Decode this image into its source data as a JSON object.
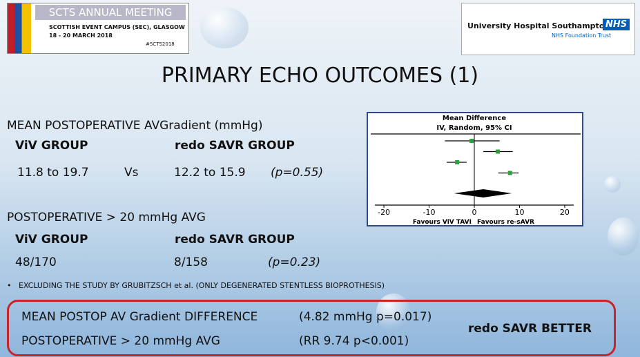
{
  "header": {
    "event_logo": {
      "title": "SCTS ANNUAL MEETING",
      "line1": "SCOTTISH EVENT CAMPUS (SEC), GLASGOW",
      "line2": "18 - 20 MARCH 2018",
      "tag": "#SCTS2018"
    },
    "hospital_logo": {
      "name": "University Hospital Southampton",
      "badge": "NHS",
      "trust": "NHS Foundation Trust"
    }
  },
  "title": "PRIMARY ECHO OUTCOMES (1)",
  "gradient": {
    "heading": "MEAN POSTOPERATIVE AVGradient (mmHg)",
    "group_a": "ViV GROUP",
    "group_b": "redo SAVR GROUP",
    "value_a": "11.8 to 19.7",
    "versus": "Vs",
    "value_b": "12.2 to 15.9",
    "p": "(p=0.55)"
  },
  "over20": {
    "heading": "POSTOPERATIVE > 20 mmHg AVG",
    "group_a": "ViV GROUP",
    "group_b": "redo SAVR GROUP",
    "value_a": "48/170",
    "value_b": "8/158",
    "p": "(p=0.23)"
  },
  "bullet": "EXCLUDING THE STUDY BY GRUBITZSCH et al. (ONLY DEGENERATED STENTLESS BIOPROTHESIS)",
  "summary": {
    "rows": [
      [
        "MEAN POSTOP AV Gradient DIFFERENCE",
        "(4.82 mmHg  p=0.017)"
      ],
      [
        "POSTOPERATIVE > 20 mmHg AVG",
        "(RR 9.74 p<0.001)"
      ]
    ],
    "conclusion": "redo SAVR BETTER"
  },
  "chart_data": {
    "type": "forest",
    "title": "Mean Difference",
    "subtitle": "IV, Random, 95% CI",
    "xlim": [
      -22,
      22
    ],
    "xticks": [
      -20,
      -10,
      0,
      10,
      20
    ],
    "favours_left": "Favours ViV TAVI",
    "favours_right": "Favours re-sAVR",
    "color": "#2e9e3e",
    "estimates": [
      -0.6,
      5.2,
      -3.8,
      7.9
    ],
    "lower": [
      -6.5,
      2.0,
      -6.1,
      5.3
    ],
    "upper": [
      5.6,
      8.5,
      -1.7,
      9.8
    ],
    "pooled": {
      "estimate": 2.0,
      "lower": -4.5,
      "upper": 8.3
    }
  }
}
